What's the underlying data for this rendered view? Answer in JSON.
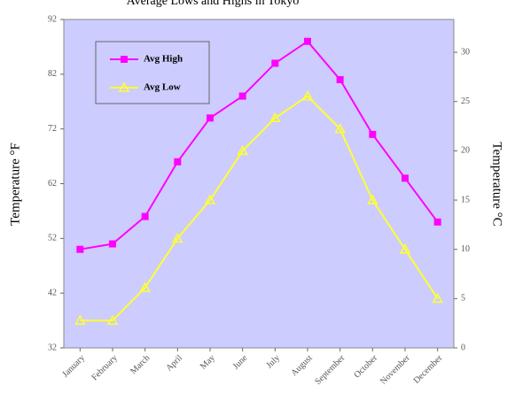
{
  "chart_data": {
    "type": "line",
    "title": "Average Lows and Highs in Tokyo",
    "y_label": "Temperature °F",
    "y2_label": "Temperature °C",
    "categories": [
      "January",
      "February",
      "March",
      "April",
      "May",
      "June",
      "July",
      "August",
      "September",
      "October",
      "November",
      "December"
    ],
    "series": [
      {
        "name": "Avg High",
        "color": "#ff00ff",
        "marker": "square",
        "values": [
          50,
          51,
          56,
          66,
          74,
          78,
          84,
          88,
          81,
          71,
          63,
          55
        ]
      },
      {
        "name": "Avg Low",
        "color": "#ffff33",
        "marker": "triangle",
        "values": [
          37,
          37,
          43,
          52,
          59,
          68,
          74,
          78,
          72,
          59,
          50,
          41
        ]
      }
    ],
    "ylim": [
      32,
      92
    ],
    "yticks": [
      32,
      42,
      52,
      62,
      72,
      82,
      92
    ],
    "y2lim": [
      0,
      33.33
    ],
    "y2ticks": [
      0,
      5,
      10,
      15,
      20,
      25,
      30
    ],
    "legend": "upper left",
    "plot_background": "#ccccff"
  }
}
